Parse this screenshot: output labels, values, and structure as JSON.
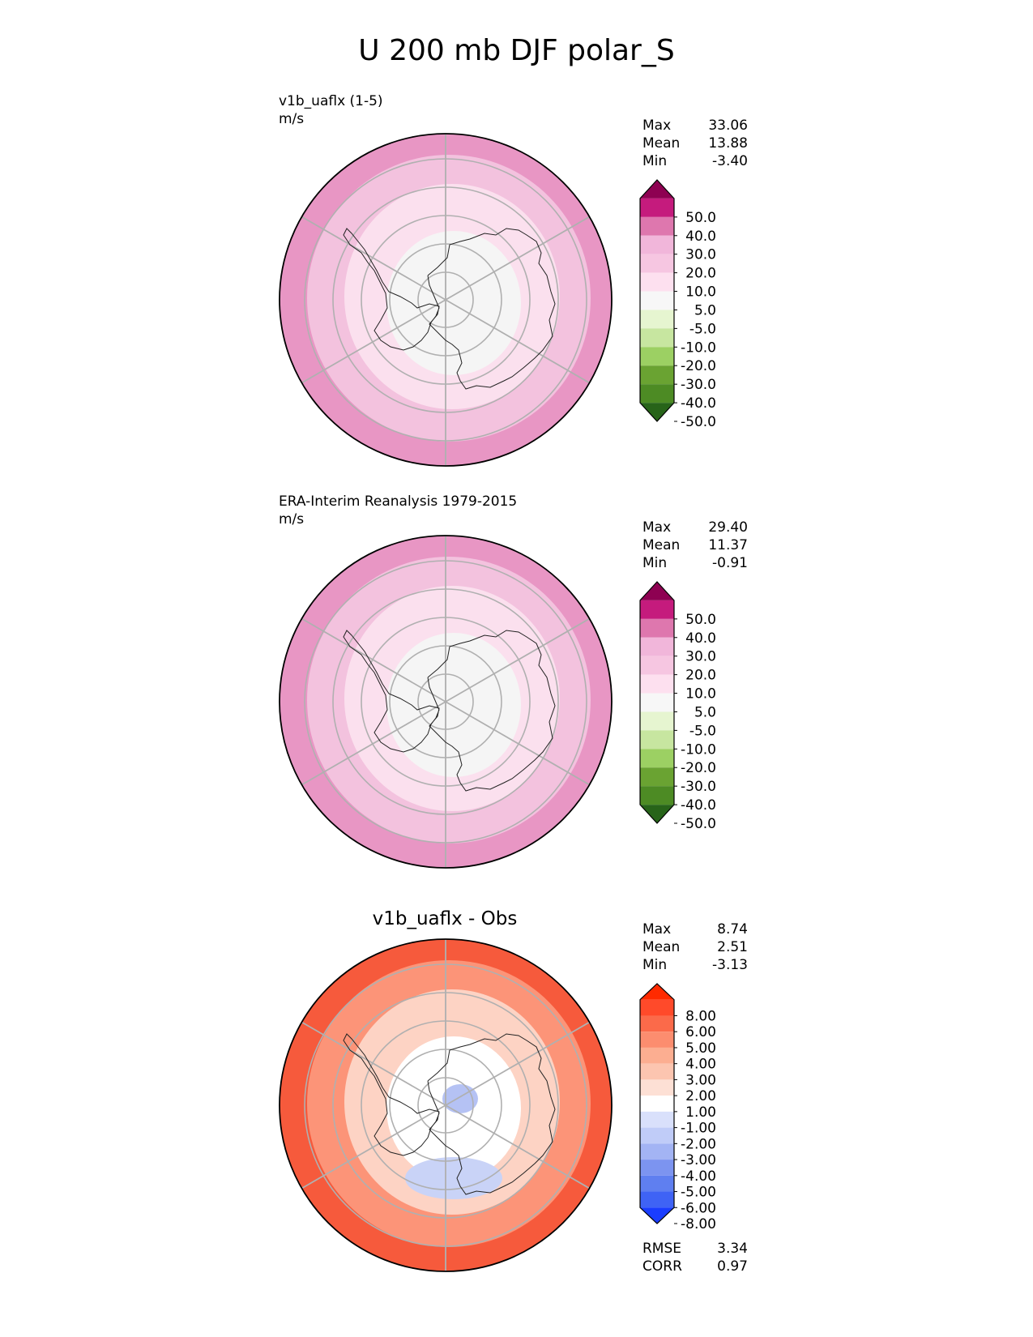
{
  "title": "U 200 mb DJF polar_S",
  "panels": [
    {
      "label": "v1b_uaflx (1-5)",
      "units": "m/s",
      "stats": {
        "max_label": "Max",
        "max": "33.06",
        "mean_label": "Mean",
        "mean": "13.88",
        "min_label": "Min",
        "min": "-3.40"
      },
      "colorbar": {
        "ticks": [
          "50.0",
          "40.0",
          "30.0",
          "20.0",
          "10.0",
          "5.0",
          "-5.0",
          "-10.0",
          "-20.0",
          "-30.0",
          "-40.0",
          "-50.0"
        ],
        "colors": [
          "#8e0152",
          "#c51b7d",
          "#de77ae",
          "#f1b6da",
          "#f6c6e1",
          "#fde0ef",
          "#f7f7f7",
          "#e6f5d0",
          "#c7e6a0",
          "#9cd063",
          "#6aa332",
          "#4d8b24",
          "#276419"
        ]
      },
      "map_palette": {
        "outer": "#e896c4",
        "ring2": "#f3c2de",
        "ring3": "#fbe0ee",
        "center": "#f5f5f5"
      }
    },
    {
      "label": "ERA-Interim Reanalysis 1979-2015",
      "units": "m/s",
      "stats": {
        "max_label": "Max",
        "max": "29.40",
        "mean_label": "Mean",
        "mean": "11.37",
        "min_label": "Min",
        "min": "-0.91"
      },
      "colorbar": {
        "ticks": [
          "50.0",
          "40.0",
          "30.0",
          "20.0",
          "10.0",
          "5.0",
          "-5.0",
          "-10.0",
          "-20.0",
          "-30.0",
          "-40.0",
          "-50.0"
        ],
        "colors": [
          "#8e0152",
          "#c51b7d",
          "#de77ae",
          "#f1b6da",
          "#f6c6e1",
          "#fde0ef",
          "#f7f7f7",
          "#e6f5d0",
          "#c7e6a0",
          "#9cd063",
          "#6aa332",
          "#4d8b24",
          "#276419"
        ]
      },
      "map_palette": {
        "outer": "#e896c4",
        "ring2": "#f3c2de",
        "ring3": "#fbe0ee",
        "center": "#f5f5f5"
      }
    },
    {
      "label": "v1b_uaflx - Obs",
      "stats": {
        "max_label": "Max",
        "max": "8.74",
        "mean_label": "Mean",
        "mean": "2.51",
        "min_label": "Min",
        "min": "-3.13"
      },
      "extra_stats": {
        "rmse_label": "RMSE",
        "rmse": "3.34",
        "corr_label": "CORR",
        "corr": "0.97"
      },
      "colorbar": {
        "ticks": [
          "8.00",
          "6.00",
          "5.00",
          "4.00",
          "3.00",
          "2.00",
          "1.00",
          "-1.00",
          "-2.00",
          "-3.00",
          "-4.00",
          "-5.00",
          "-6.00",
          "-8.00"
        ],
        "colors": [
          "#ff2a00",
          "#ff4a2a",
          "#fb6a4a",
          "#fc8d6f",
          "#fcae91",
          "#fcc5b0",
          "#fde0d5",
          "#ffffff",
          "#d9e0fb",
          "#c0ccf8",
          "#a3b4f4",
          "#7c94f0",
          "#5f7ff0",
          "#3f63f5",
          "#1a3dff"
        ]
      },
      "map_palette": {
        "outer": "#f65a3c",
        "ring2": "#fc9478",
        "ring3": "#fdd3c4",
        "center": "#ffffff",
        "blue": "#c9d3f7",
        "blue2": "#b5c2f4"
      }
    }
  ]
}
